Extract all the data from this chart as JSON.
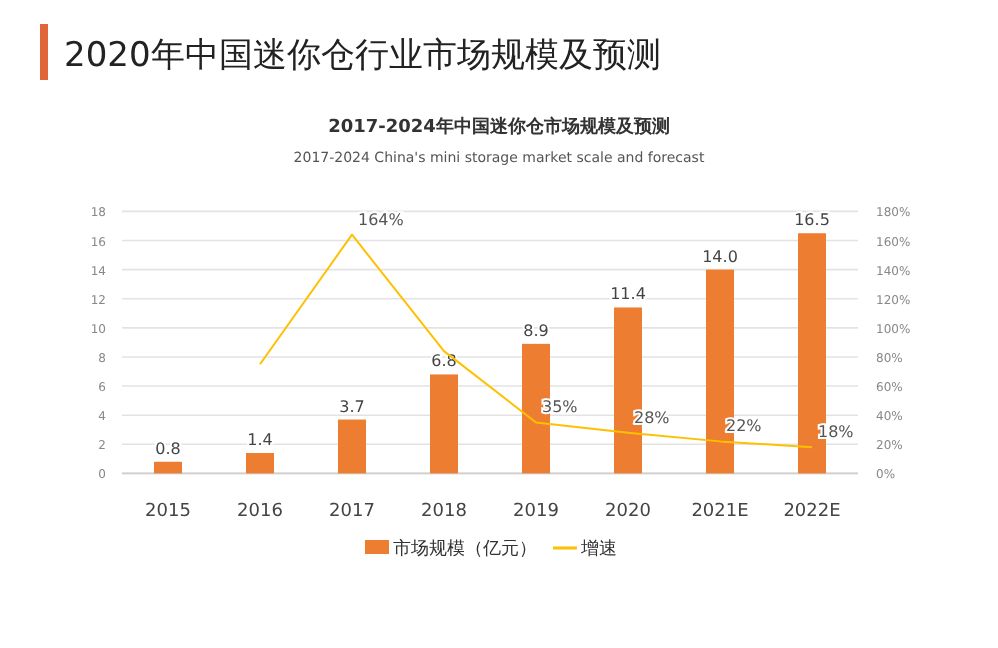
{
  "chart_data": {
    "type": "bar",
    "title": "2020年中国迷你仓行业市场规模及预测",
    "subtitle": "2017-2024年中国迷你仓市场规模及预测",
    "annotations": [
      "2017-2024 China's mini storage market scale and forecast"
    ],
    "categories": [
      "2015",
      "2016",
      "2017",
      "2018",
      "2019",
      "2020",
      "2021E",
      "2022E"
    ],
    "series": [
      {
        "name": "市场规模（亿元）",
        "color": "#ed7d31",
        "values": [
          0.8,
          1.4,
          3.7,
          6.8,
          8.9,
          11.4,
          14.0,
          16.5
        ],
        "value_labels": [
          "0.8",
          "1.4",
          "3.7",
          "6.8",
          "8.9",
          "11.4",
          "14.0",
          "16.5"
        ]
      },
      {
        "name": "增速",
        "type": "line",
        "axis": "y2",
        "color": "#ffc000",
        "values": [
          null,
          75,
          164,
          84,
          35,
          28,
          22,
          18
        ],
        "value_labels": [
          null,
          null,
          "164%",
          null,
          "35%",
          "28%",
          "22%",
          "18%"
        ]
      }
    ],
    "ylim": [
      0,
      18
    ],
    "yticks": [
      0,
      2,
      4,
      6,
      8,
      10,
      12,
      14,
      16,
      18
    ],
    "y2lim": [
      0,
      180
    ],
    "y2ticks": [
      {
        "value": 0,
        "label": "0%"
      },
      {
        "value": 20,
        "label": "20%"
      },
      {
        "value": 40,
        "label": "40%"
      },
      {
        "value": 60,
        "label": "60%"
      },
      {
        "value": 80,
        "label": "80%"
      },
      {
        "value": 100,
        "label": "100%"
      },
      {
        "value": 120,
        "label": "120%"
      },
      {
        "value": 140,
        "label": "140%"
      },
      {
        "value": 160,
        "label": "160%"
      },
      {
        "value": 180,
        "label": "180%"
      }
    ],
    "grid": "y",
    "legend": "bottom",
    "marker": "none",
    "line_style": "solid"
  }
}
